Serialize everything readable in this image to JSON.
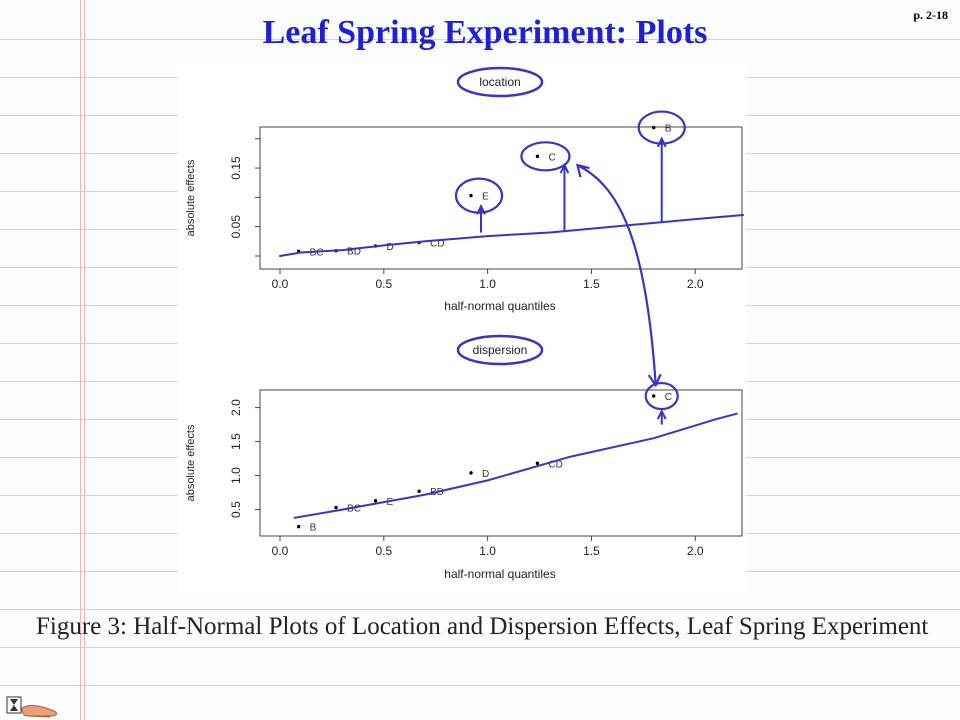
{
  "title": "Leaf Spring Experiment: Plots",
  "page_number": "p. 2-18",
  "caption": "Figure 3:  Half-Normal Plots of Location and Dispersion Effects, Leaf Spring Experiment",
  "colors": {
    "title": "#1f1fd6",
    "annotation": "#3535c8",
    "points": "#000000"
  },
  "chart_data": [
    {
      "type": "scatter",
      "title": "location",
      "xlabel": "half-normal quantiles",
      "ylabel": "absolute effects",
      "xlim": [
        0,
        2.1
      ],
      "ylim": [
        0,
        0.22
      ],
      "xticks": [
        0.0,
        0.5,
        1.0,
        1.5,
        2.0
      ],
      "xtick_labels": [
        "0.0",
        "0.5",
        "1.0",
        "1.5",
        "2.0"
      ],
      "yticks": [
        0.05,
        0.15
      ],
      "ytick_labels": [
        "0.05",
        "0.15"
      ],
      "yminor": [
        0.0,
        0.1,
        0.2
      ],
      "points": [
        {
          "label": "BC",
          "x": 0.09,
          "y": 0.008
        },
        {
          "label": "BD",
          "x": 0.27,
          "y": 0.009
        },
        {
          "label": "D",
          "x": 0.46,
          "y": 0.017
        },
        {
          "label": "CD",
          "x": 0.67,
          "y": 0.023
        },
        {
          "label": "E",
          "x": 0.92,
          "y": 0.103
        },
        {
          "label": "C",
          "x": 1.24,
          "y": 0.17
        },
        {
          "label": "B",
          "x": 1.8,
          "y": 0.219
        }
      ]
    },
    {
      "type": "scatter",
      "title": "dispersion",
      "xlabel": "half-normal quantiles",
      "ylabel": "absolute effects",
      "xlim": [
        0,
        2.1
      ],
      "ylim": [
        0.2,
        2.2
      ],
      "xticks": [
        0.0,
        0.5,
        1.0,
        1.5,
        2.0
      ],
      "xtick_labels": [
        "0.0",
        "0.5",
        "1.0",
        "1.5",
        "2.0"
      ],
      "yticks": [
        0.5,
        1.0,
        1.5,
        2.0
      ],
      "ytick_labels": [
        "0.5",
        "1.0",
        "1.5",
        "2.0"
      ],
      "yminor": [],
      "points": [
        {
          "label": "B",
          "x": 0.09,
          "y": 0.25
        },
        {
          "label": "BC",
          "x": 0.27,
          "y": 0.53
        },
        {
          "label": "E",
          "x": 0.46,
          "y": 0.63
        },
        {
          "label": "BD",
          "x": 0.67,
          "y": 0.77
        },
        {
          "label": "D",
          "x": 0.92,
          "y": 1.04
        },
        {
          "label": "CD",
          "x": 1.24,
          "y": 1.18
        },
        {
          "label": "C",
          "x": 1.8,
          "y": 2.17
        }
      ]
    }
  ]
}
